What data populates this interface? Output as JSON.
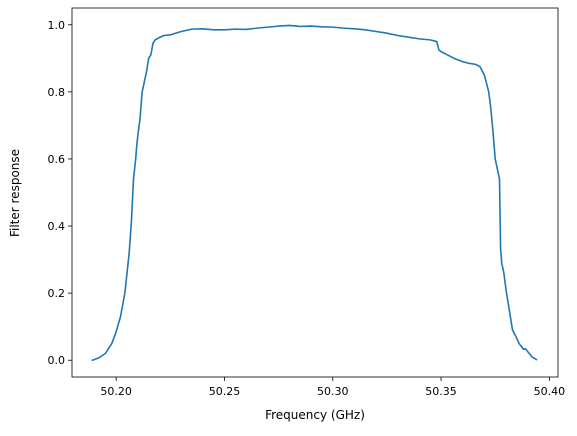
{
  "chart_data": {
    "type": "line",
    "title": "",
    "xlabel": "Frequency (GHz)",
    "ylabel": "Filter response",
    "xlim": [
      50.1796,
      50.404
    ],
    "ylim": [
      -0.05,
      1.05
    ],
    "x_ticks": [
      50.2,
      50.25,
      50.3,
      50.35,
      50.4
    ],
    "x_tick_labels": [
      "50.20",
      "50.25",
      "50.30",
      "50.35",
      "50.40"
    ],
    "y_ticks": [
      0.0,
      0.2,
      0.4,
      0.6,
      0.8,
      1.0
    ],
    "y_tick_labels": [
      "0.0",
      "0.2",
      "0.4",
      "0.6",
      "0.8",
      "1.0"
    ],
    "grid": false,
    "legend": "none",
    "series": [
      {
        "color": "#1f77b4",
        "x": [
          50.189,
          50.192,
          50.195,
          50.198,
          50.2,
          50.202,
          50.204,
          50.205,
          50.206,
          50.207,
          50.208,
          50.209,
          50.2095,
          50.21,
          50.211,
          50.2115,
          50.212,
          50.213,
          50.214,
          50.215,
          50.216,
          50.217,
          50.218,
          50.22,
          50.222,
          50.225,
          50.23,
          50.235,
          50.24,
          50.245,
          50.25,
          50.255,
          50.26,
          50.265,
          50.27,
          50.275,
          50.28,
          50.285,
          50.29,
          50.295,
          50.3,
          50.305,
          50.31,
          50.315,
          50.32,
          50.325,
          50.33,
          50.335,
          50.34,
          50.345,
          50.348,
          50.349,
          50.35,
          50.353,
          50.356,
          50.36,
          50.363,
          50.366,
          50.368,
          50.37,
          50.372,
          50.373,
          50.374,
          50.375,
          50.376,
          50.377,
          50.3775,
          50.3778,
          50.378,
          50.379,
          50.38,
          50.381,
          50.382,
          50.383,
          50.385,
          50.386,
          50.388,
          50.389,
          50.392,
          50.394
        ],
        "y": [
          0.0,
          0.007,
          0.02,
          0.05,
          0.085,
          0.13,
          0.2,
          0.26,
          0.32,
          0.41,
          0.54,
          0.6,
          0.64,
          0.67,
          0.72,
          0.76,
          0.8,
          0.83,
          0.86,
          0.9,
          0.91,
          0.945,
          0.955,
          0.962,
          0.968,
          0.97,
          0.98,
          0.987,
          0.988,
          0.985,
          0.985,
          0.987,
          0.986,
          0.99,
          0.993,
          0.996,
          0.998,
          0.995,
          0.996,
          0.994,
          0.993,
          0.99,
          0.988,
          0.985,
          0.98,
          0.975,
          0.968,
          0.963,
          0.958,
          0.955,
          0.95,
          0.925,
          0.92,
          0.91,
          0.9,
          0.89,
          0.885,
          0.882,
          0.875,
          0.85,
          0.8,
          0.75,
          0.68,
          0.6,
          0.57,
          0.54,
          0.33,
          0.31,
          0.29,
          0.26,
          0.21,
          0.17,
          0.13,
          0.09,
          0.065,
          0.05,
          0.033,
          0.034,
          0.01,
          0.002
        ]
      }
    ]
  }
}
